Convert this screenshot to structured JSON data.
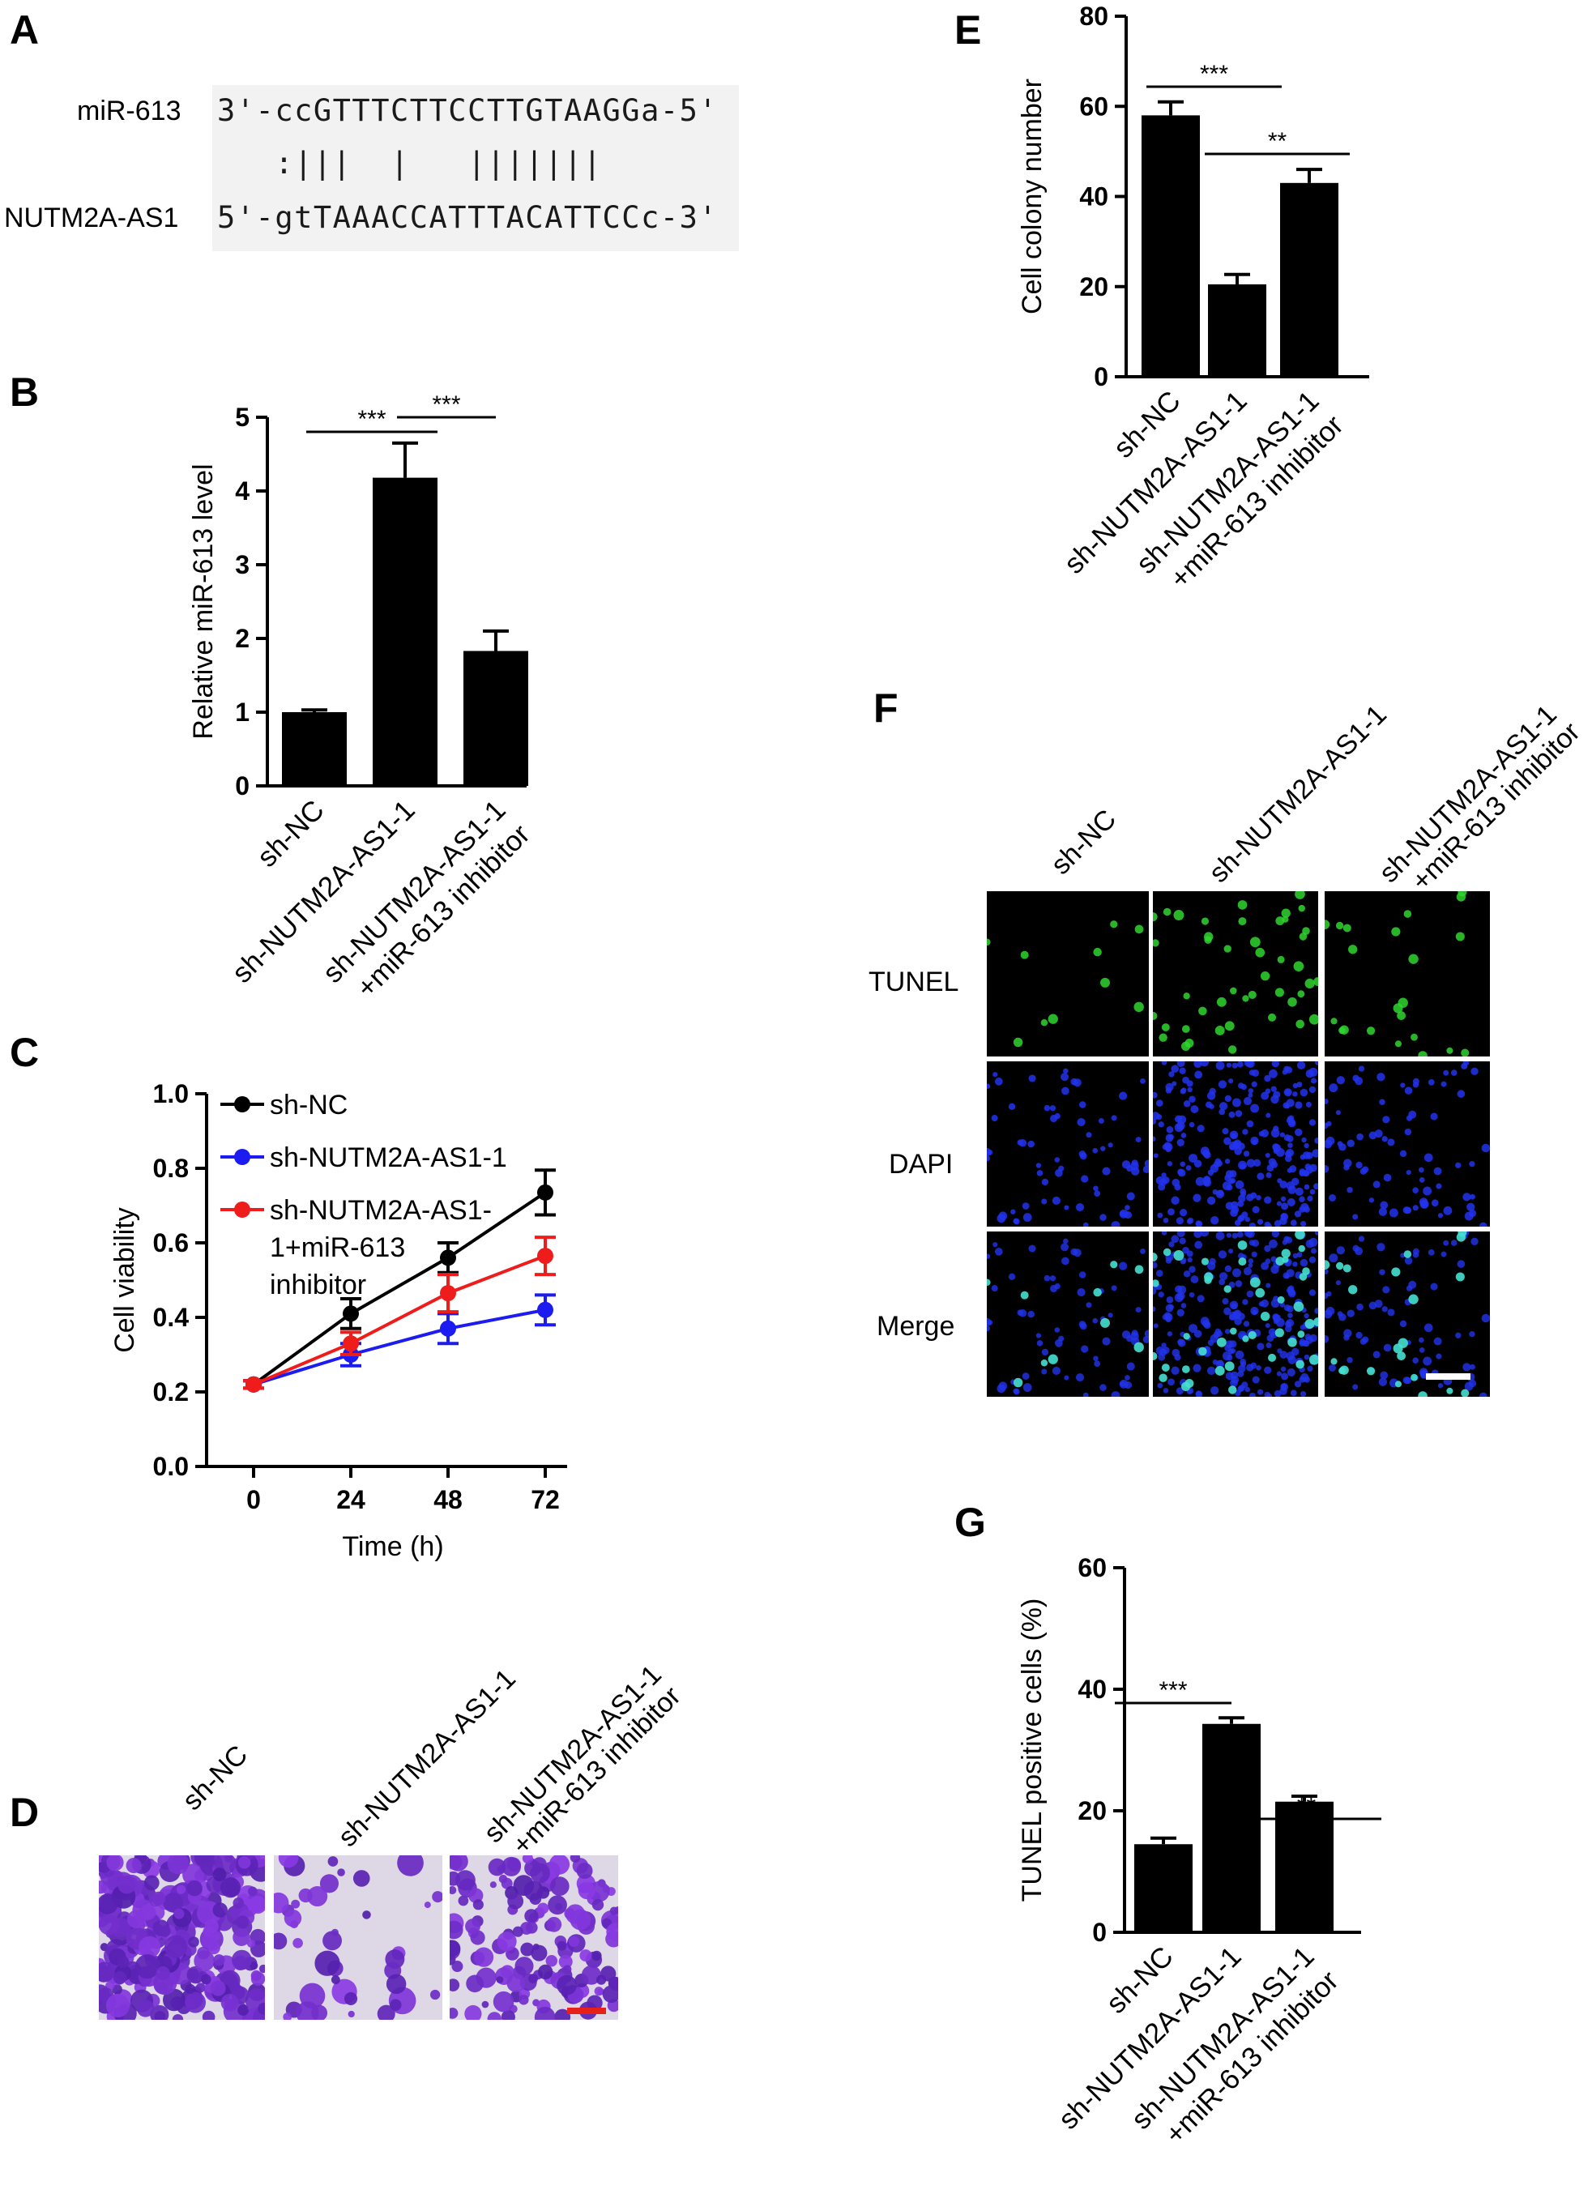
{
  "panels": {
    "A": "A",
    "B": "B",
    "C": "C",
    "D": "D",
    "E": "E",
    "F": "F",
    "G": "G"
  },
  "panel_a": {
    "row1_label": "miR-613",
    "row1_seq": "3'-ccGTTTCTTCCTTGTAAGGa-5'",
    "pairing": "   :|||  |   |||||||",
    "row2_label": "NUTM2A-AS1",
    "row2_seq": "5'-gtTAAACCATTTACATTCCc-3'"
  },
  "panel_d": {
    "labels": [
      "sh-NC",
      "sh-NUTM2A-AS1-1",
      "sh-NUTM2A-AS1-1",
      "+miR-613 inhibitor"
    ],
    "scale_bar_color": "#e8201a"
  },
  "panel_f": {
    "col_labels": [
      "sh-NC",
      "sh-NUTM2A-AS1-1",
      "sh-NUTM2A-AS1-1",
      "+miR-613 inhibitor"
    ],
    "row_labels": [
      "TUNEL",
      "DAPI",
      "Merge"
    ],
    "colors": {
      "tunel": "#2fd62f",
      "dapi": "#2233ee",
      "merge": "#45e0d0"
    }
  },
  "chart_data": [
    {
      "id": "B",
      "type": "bar",
      "categories": [
        "sh-NC",
        "sh-NUTM2A-AS1-1",
        "sh-NUTM2A-AS1-1\n+miR-613 inhibitor"
      ],
      "values": [
        1.0,
        4.18,
        1.83
      ],
      "errors": [
        0.03,
        0.47,
        0.27
      ],
      "ylabel": "Relative miR-613 level",
      "ylim": [
        0,
        5
      ],
      "yticks": [
        "0",
        "1",
        "2",
        "3",
        "4",
        "5"
      ],
      "significance": [
        {
          "from": 0,
          "to": 1,
          "label": "***"
        },
        {
          "from": 1,
          "to": 2,
          "label": "***"
        }
      ]
    },
    {
      "id": "C",
      "type": "line",
      "x": [
        0,
        24,
        48,
        72
      ],
      "xticks": [
        "0",
        "24",
        "48",
        "72"
      ],
      "xlabel": "Time (h)",
      "ylabel": "Cell viability",
      "ylim": [
        0,
        1.0
      ],
      "yticks": [
        "0.0",
        "0.2",
        "0.4",
        "0.6",
        "0.8",
        "1.0"
      ],
      "series": [
        {
          "name": "sh-NC",
          "color": "#000000",
          "values": [
            0.22,
            0.41,
            0.56,
            0.735
          ],
          "errors": [
            0.01,
            0.04,
            0.04,
            0.06
          ]
        },
        {
          "name": "sh-NUTM2A-AS1-1",
          "color": "#1c1cf0",
          "values": [
            0.22,
            0.3,
            0.37,
            0.42
          ],
          "errors": [
            0.01,
            0.03,
            0.04,
            0.04
          ]
        },
        {
          "name": "sh-NUTM2A-AS1-1+miR-613 inhibitor",
          "legend_lines": [
            "sh-NUTM2A-AS1-",
            "1+miR-613",
            "inhibitor"
          ],
          "color": "#ef1c1c",
          "values": [
            0.22,
            0.33,
            0.465,
            0.565
          ],
          "errors": [
            0.01,
            0.03,
            0.05,
            0.05
          ]
        }
      ]
    },
    {
      "id": "E",
      "type": "bar",
      "categories": [
        "sh-NC",
        "sh-NUTM2A-AS1-1",
        "sh-NUTM2A-AS1-1\n+miR-613 inhibitor"
      ],
      "values": [
        58,
        20.5,
        43
      ],
      "errors": [
        3,
        2.2,
        3
      ],
      "ylabel": "Cell colony number",
      "ylim": [
        0,
        80
      ],
      "yticks": [
        "0",
        "20",
        "40",
        "60",
        "80"
      ],
      "significance": [
        {
          "from": 0,
          "to": 1,
          "label": "***"
        },
        {
          "from": 1,
          "to": 2,
          "label": "**"
        }
      ]
    },
    {
      "id": "G",
      "type": "bar",
      "categories": [
        "sh-NC",
        "sh-NUTM2A-AS1-1",
        "sh-NUTM2A-AS1-1\n+miR-613 inhibitor"
      ],
      "values": [
        14.5,
        34.3,
        21.5
      ],
      "errors": [
        1.0,
        1.0,
        0.9
      ],
      "ylabel": "TUNEL positive cells (%)",
      "ylim": [
        0,
        60
      ],
      "yticks": [
        "0",
        "20",
        "40",
        "60"
      ],
      "significance": [
        {
          "from": 0,
          "to": 1,
          "label": "***"
        },
        {
          "from": 1,
          "to": 2,
          "label": "**"
        }
      ]
    }
  ]
}
